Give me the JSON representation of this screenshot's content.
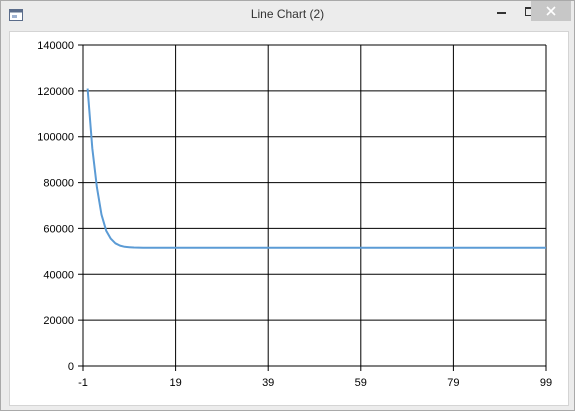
{
  "window": {
    "title": "Line Chart (2)",
    "icon": "app-window-icon",
    "controls": {
      "minimize_icon": "minimize-icon",
      "maximize_icon": "maximize-icon",
      "close_icon": "close-icon"
    }
  },
  "chart_data": {
    "type": "line",
    "title": "",
    "xlabel": "",
    "ylabel": "",
    "xlim": [
      -1,
      99
    ],
    "ylim": [
      0,
      140000
    ],
    "x_ticks": [
      "-1",
      "19",
      "39",
      "59",
      "79",
      "99"
    ],
    "y_ticks": [
      "0",
      "20000",
      "40000",
      "60000",
      "80000",
      "100000",
      "120000",
      "140000"
    ],
    "grid": true,
    "legend": "none",
    "colors": {
      "line": "#5b9bd5",
      "grid": "#000000"
    },
    "series": [
      {
        "x": [
          0,
          1,
          2,
          3,
          4,
          5,
          6,
          7,
          8,
          9,
          10,
          12,
          15,
          20,
          30,
          40,
          50,
          60,
          70,
          80,
          90,
          99
        ],
        "values": [
          121000,
          95000,
          78000,
          66000,
          59000,
          55500,
          53500,
          52500,
          52000,
          51800,
          51700,
          51600,
          51600,
          51600,
          51600,
          51600,
          51600,
          51600,
          51600,
          51600,
          51600,
          51600
        ]
      }
    ]
  }
}
